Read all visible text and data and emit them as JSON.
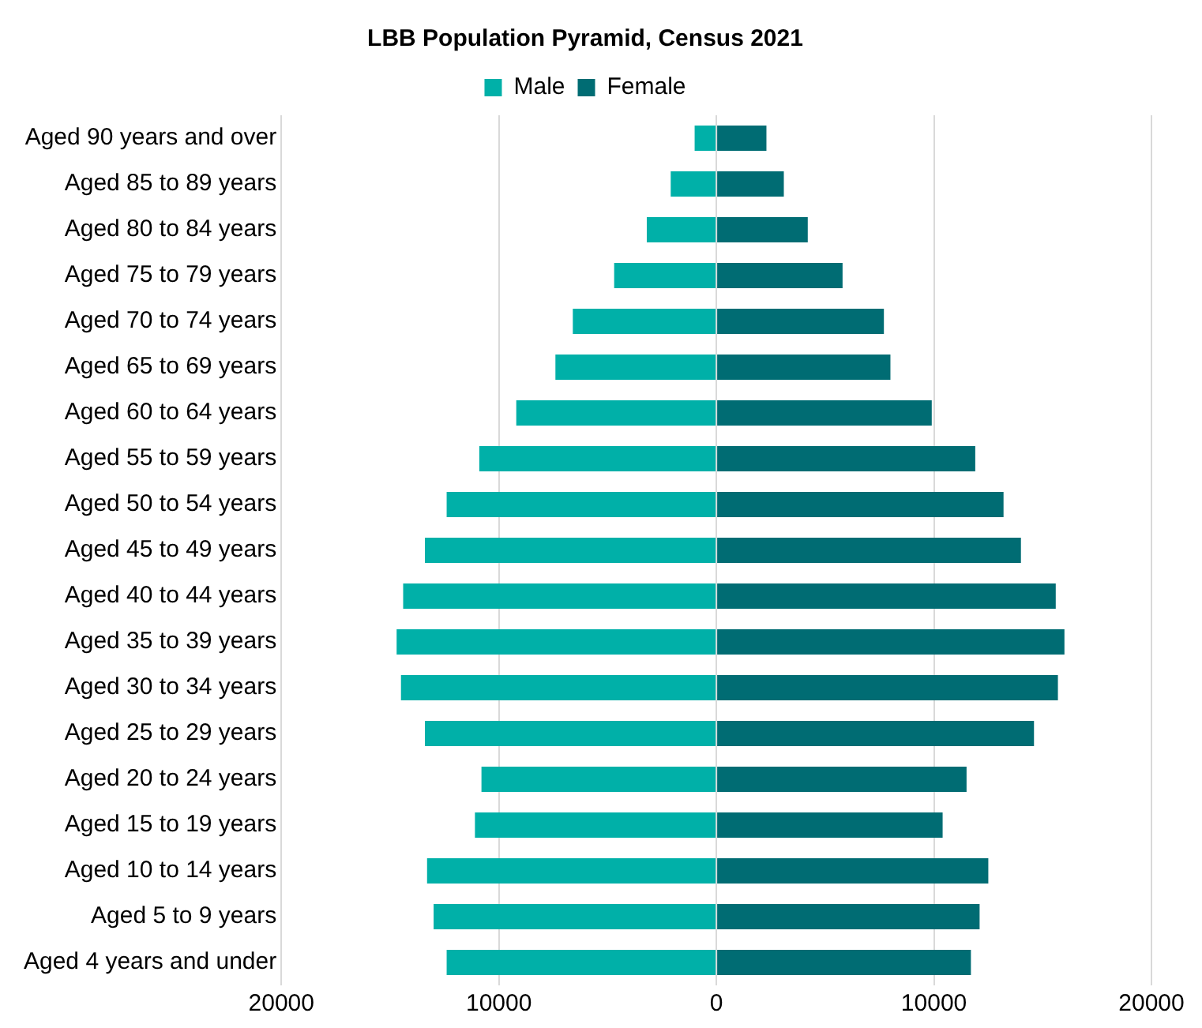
{
  "chart_data": {
    "type": "bar",
    "title": "LBB Population Pyramid, Census 2021",
    "orientation": "horizontal",
    "stacked": true,
    "categories": [
      "Aged 90 years and over",
      "Aged 85 to 89 years",
      "Aged 80 to 84 years",
      "Aged 75 to 79 years",
      "Aged 70 to 74 years",
      "Aged 65 to 69 years",
      "Aged 60 to 64 years",
      "Aged 55 to 59 years",
      "Aged 50 to 54 years",
      "Aged 45 to 49 years",
      "Aged 40 to 44 years",
      "Aged 35 to 39 years",
      "Aged 30 to 34 years",
      "Aged 25 to 29 years",
      "Aged 20 to 24 years",
      "Aged 15 to 19 years",
      "Aged 10 to 14 years",
      "Aged 5 to 9 years",
      "Aged 4 years and under"
    ],
    "series": [
      {
        "name": "Male",
        "color": "#00b0a8",
        "values": [
          -1000,
          -2100,
          -3200,
          -4700,
          -6600,
          -7400,
          -9200,
          -10900,
          -12400,
          -13400,
          -14400,
          -14700,
          -14500,
          -13400,
          -10800,
          -11100,
          -13300,
          -13000,
          -12400
        ]
      },
      {
        "name": "Female",
        "color": "#006c73",
        "values": [
          2300,
          3100,
          4200,
          5800,
          7700,
          8000,
          9900,
          11900,
          13200,
          14000,
          15600,
          16000,
          15700,
          14600,
          11500,
          10400,
          12500,
          12100,
          11700
        ]
      }
    ],
    "xlim": [
      -20000,
      20000
    ],
    "xticks": [
      {
        "value": -20000,
        "label": "20000"
      },
      {
        "value": -10000,
        "label": "10000"
      },
      0,
      10000,
      20000
    ],
    "grid": "x",
    "legend": "top"
  }
}
